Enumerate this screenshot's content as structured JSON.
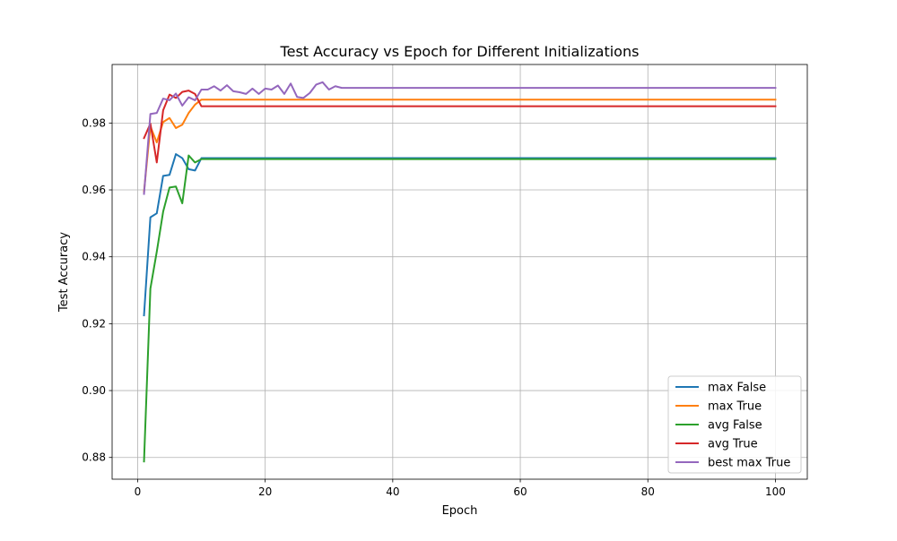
{
  "chart_data": {
    "type": "line",
    "title": "Test Accuracy vs Epoch for Different Initializations",
    "xlabel": "Epoch",
    "ylabel": "Test Accuracy",
    "xlim": [
      -4,
      105
    ],
    "ylim": [
      0.8735,
      0.9975
    ],
    "xticks": [
      0,
      20,
      40,
      60,
      80,
      100
    ],
    "yticks": [
      0.88,
      0.9,
      0.92,
      0.94,
      0.96,
      0.98
    ],
    "xtick_labels": [
      "0",
      "20",
      "40",
      "60",
      "80",
      "100"
    ],
    "ytick_labels": [
      "0.88",
      "0.90",
      "0.92",
      "0.94",
      "0.96",
      "0.98"
    ],
    "grid": true,
    "legend_position": "lower-right",
    "series": [
      {
        "name": "max False",
        "color": "#1f77b4",
        "x": [
          1,
          2,
          3,
          4,
          5,
          6,
          7,
          8,
          9,
          10,
          100
        ],
        "y": [
          0.9225,
          0.9518,
          0.953,
          0.9642,
          0.9645,
          0.9707,
          0.9695,
          0.9662,
          0.9658,
          0.9695,
          0.9695
        ]
      },
      {
        "name": "max True",
        "color": "#ff7f0e",
        "x": [
          1,
          2,
          3,
          4,
          5,
          6,
          7,
          8,
          9,
          10,
          100
        ],
        "y": [
          0.9595,
          0.979,
          0.9742,
          0.9803,
          0.9815,
          0.9785,
          0.9795,
          0.983,
          0.9855,
          0.987,
          0.987
        ]
      },
      {
        "name": "avg False",
        "color": "#2ca02c",
        "x": [
          1,
          2,
          3,
          4,
          5,
          6,
          7,
          8,
          9,
          10,
          100
        ],
        "y": [
          0.8788,
          0.9305,
          0.9415,
          0.9535,
          0.9607,
          0.961,
          0.956,
          0.9703,
          0.9682,
          0.9692,
          0.9692
        ]
      },
      {
        "name": "avg True",
        "color": "#d62728",
        "x": [
          1,
          2,
          3,
          4,
          5,
          6,
          7,
          8,
          9,
          10,
          100
        ],
        "y": [
          0.9755,
          0.9798,
          0.9682,
          0.9838,
          0.9885,
          0.9875,
          0.9893,
          0.9897,
          0.9887,
          0.985,
          0.985
        ]
      },
      {
        "name": "best max True",
        "color": "#9467bd",
        "x": [
          1,
          2,
          3,
          4,
          5,
          6,
          7,
          8,
          9,
          10,
          11,
          12,
          13,
          14,
          15,
          16,
          17,
          18,
          19,
          20,
          21,
          22,
          23,
          24,
          25,
          26,
          27,
          28,
          29,
          30,
          31,
          32,
          100
        ],
        "y": [
          0.9588,
          0.9827,
          0.983,
          0.9873,
          0.9868,
          0.9888,
          0.9852,
          0.9877,
          0.9868,
          0.99,
          0.99,
          0.991,
          0.9897,
          0.9913,
          0.9895,
          0.9892,
          0.9887,
          0.9903,
          0.9887,
          0.9903,
          0.99,
          0.9912,
          0.9887,
          0.9918,
          0.9878,
          0.9875,
          0.989,
          0.9915,
          0.9922,
          0.99,
          0.991,
          0.9905,
          0.9905
        ]
      }
    ]
  }
}
